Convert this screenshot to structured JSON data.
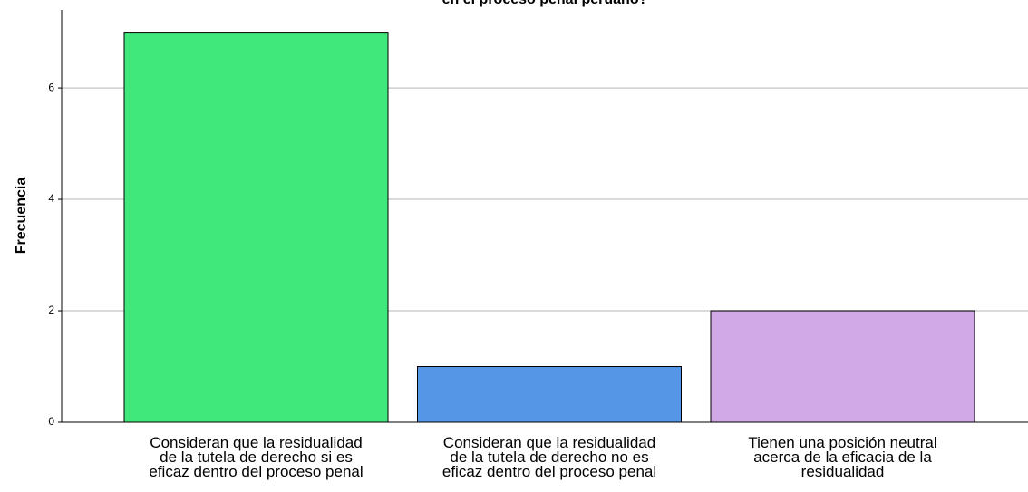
{
  "chart_data": {
    "type": "bar",
    "title": "en el proceso penal peruano?",
    "y_label": "Frecuencia",
    "categories": [
      "Consideran que la residualidad\nde la tutela de derecho si es\neficaz dentro del proceso penal",
      "Consideran que la residualidad\nde la tutela de derecho no es\neficaz dentro del proceso penal",
      "Tienen una posición neutral\nacerca de la eficacia de la\nresidualidad"
    ],
    "values": [
      7,
      1,
      2
    ],
    "colors": [
      "#40e87c",
      "#5596e6",
      "#d1a9e6"
    ],
    "ylim": [
      0,
      7.4
    ],
    "yticks": [
      0,
      2,
      4,
      6
    ],
    "grid": true
  }
}
